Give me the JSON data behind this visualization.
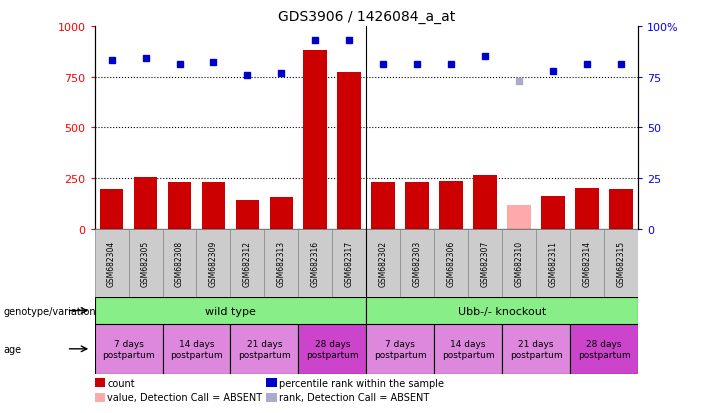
{
  "title": "GDS3906 / 1426084_a_at",
  "samples": [
    "GSM682304",
    "GSM682305",
    "GSM682308",
    "GSM682309",
    "GSM682312",
    "GSM682313",
    "GSM682316",
    "GSM682317",
    "GSM682302",
    "GSM682303",
    "GSM682306",
    "GSM682307",
    "GSM682310",
    "GSM682311",
    "GSM682314",
    "GSM682315"
  ],
  "bar_values": [
    195,
    255,
    230,
    230,
    140,
    155,
    880,
    775,
    230,
    230,
    235,
    265,
    115,
    160,
    200,
    195
  ],
  "bar_colors": [
    "#cc0000",
    "#cc0000",
    "#cc0000",
    "#cc0000",
    "#cc0000",
    "#cc0000",
    "#cc0000",
    "#cc0000",
    "#cc0000",
    "#cc0000",
    "#cc0000",
    "#cc0000",
    "#ffaaaa",
    "#cc0000",
    "#cc0000",
    "#cc0000"
  ],
  "dot_values": [
    83,
    84,
    81,
    82,
    76,
    77,
    93,
    93,
    81,
    81,
    81,
    85,
    73,
    78,
    81,
    81
  ],
  "dot_colors": [
    "#0000cc",
    "#0000cc",
    "#0000cc",
    "#0000cc",
    "#0000cc",
    "#0000cc",
    "#0000cc",
    "#0000cc",
    "#0000cc",
    "#0000cc",
    "#0000cc",
    "#0000cc",
    "#aaaacc",
    "#0000cc",
    "#0000cc",
    "#0000cc"
  ],
  "ylim_left": [
    0,
    1000
  ],
  "ylim_right": [
    0,
    100
  ],
  "yticks_left": [
    0,
    250,
    500,
    750,
    1000
  ],
  "ytick_labels_left": [
    "0",
    "250",
    "500",
    "750",
    "1000"
  ],
  "yticks_right": [
    0,
    25,
    50,
    75,
    100
  ],
  "ytick_labels_right": [
    "0",
    "25",
    "50",
    "75",
    "100%"
  ],
  "hlines": [
    250,
    500,
    750
  ],
  "genotype_groups": [
    {
      "label": "wild type",
      "start": 0,
      "end": 8,
      "color": "#88ee88"
    },
    {
      "label": "Ubb-/- knockout",
      "start": 8,
      "end": 16,
      "color": "#88ee88"
    }
  ],
  "age_groups": [
    {
      "label": "7 days\npostpartum",
      "start": 0,
      "end": 4,
      "color": "#dd88dd"
    },
    {
      "label": "14 days\npostpartum",
      "start": 4,
      "end": 8,
      "color": "#dd88dd"
    },
    {
      "label": "21 days\npostpartum",
      "start": 8,
      "end": 12,
      "color": "#dd88dd"
    },
    {
      "label": "28 days\npostpartum",
      "start": 12,
      "end": 16,
      "color": "#cc44cc"
    },
    {
      "label": "7 days\npostpartum",
      "start": 16,
      "end": 20,
      "color": "#dd88dd"
    },
    {
      "label": "14 days\npostpartum",
      "start": 20,
      "end": 24,
      "color": "#dd88dd"
    },
    {
      "label": "21 days\npostpartum",
      "start": 24,
      "end": 28,
      "color": "#dd88dd"
    },
    {
      "label": "28 days\npostpartum",
      "start": 28,
      "end": 32,
      "color": "#cc44cc"
    }
  ],
  "legend_items": [
    {
      "label": "count",
      "color": "#cc0000"
    },
    {
      "label": "percentile rank within the sample",
      "color": "#0000cc"
    },
    {
      "label": "value, Detection Call = ABSENT",
      "color": "#ffaaaa"
    },
    {
      "label": "rank, Detection Call = ABSENT",
      "color": "#aaaacc"
    }
  ],
  "genotype_label": "genotype/variation",
  "age_label": "age"
}
